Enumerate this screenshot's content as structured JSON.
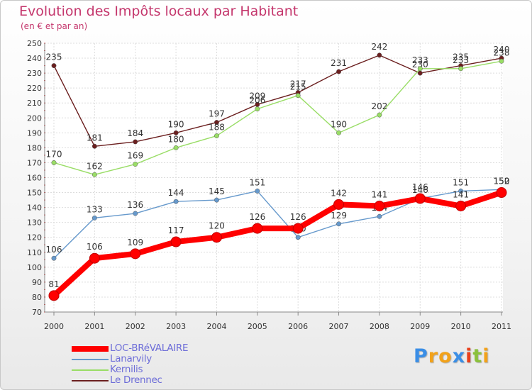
{
  "chart_data": {
    "type": "line",
    "title": "Evolution des Impôts locaux par Habitant",
    "subtitle": "(en € et par an)",
    "x": [
      "2000",
      "2001",
      "2002",
      "2003",
      "2004",
      "2005",
      "2006",
      "2007",
      "2008",
      "2009",
      "2010",
      "2011"
    ],
    "yticks": [
      70,
      80,
      90,
      100,
      110,
      120,
      130,
      140,
      150,
      160,
      170,
      180,
      190,
      200,
      210,
      220,
      230,
      240,
      250
    ],
    "ylim": [
      70,
      250
    ],
    "grid": true,
    "series": [
      {
        "name": "LOC-BRéVALAIRE",
        "color": "#ff0000",
        "values": [
          81,
          106,
          109,
          117,
          120,
          126,
          126,
          142,
          141,
          146,
          141,
          150
        ],
        "labels": [
          "81",
          "106",
          "109",
          "117",
          "120",
          "126",
          "126",
          "142",
          "141",
          "146",
          "141",
          "150"
        ]
      },
      {
        "name": "Lanarvily",
        "color": "#6699cc",
        "values": [
          106,
          133,
          136,
          144,
          145,
          151,
          120,
          129,
          134,
          146,
          151,
          152
        ],
        "labels": [
          "106",
          "133",
          "136",
          "144",
          "145",
          "151",
          "120",
          "129",
          "134",
          "146",
          "151",
          "152"
        ]
      },
      {
        "name": "Kernilis",
        "color": "#99dd66",
        "values": [
          170,
          162,
          169,
          180,
          188,
          206,
          215,
          190,
          202,
          233,
          233,
          238
        ],
        "labels": [
          "170",
          "162",
          "169",
          "180",
          "188",
          "206",
          "215",
          "190",
          "202",
          "233",
          "233",
          "238"
        ]
      },
      {
        "name": "Le Drennec",
        "color": "#6b1f1f",
        "values": [
          235,
          181,
          184,
          190,
          197,
          209,
          217,
          231,
          242,
          230,
          235,
          240
        ],
        "labels": [
          "235",
          "181",
          "184",
          "190",
          "197",
          "209",
          "217",
          "231",
          "242",
          "230",
          "235",
          "240"
        ]
      }
    ]
  },
  "legend": {
    "items": [
      {
        "label": "LOC-BRéVALAIRE",
        "color": "#ff0000"
      },
      {
        "label": "Lanarvily",
        "color": "#6699cc"
      },
      {
        "label": "Kernilis",
        "color": "#99dd66"
      },
      {
        "label": "Le Drennec",
        "color": "#6b1f1f"
      }
    ]
  },
  "logo": {
    "letters": [
      "P",
      "r",
      "o",
      "x",
      "i",
      "t",
      "i"
    ],
    "colors": [
      "#3a8ee6",
      "#f2a21a",
      "#f2a21a",
      "#3a8ee6",
      "#e8401c",
      "#8bc13c",
      "#f2a21a"
    ]
  }
}
